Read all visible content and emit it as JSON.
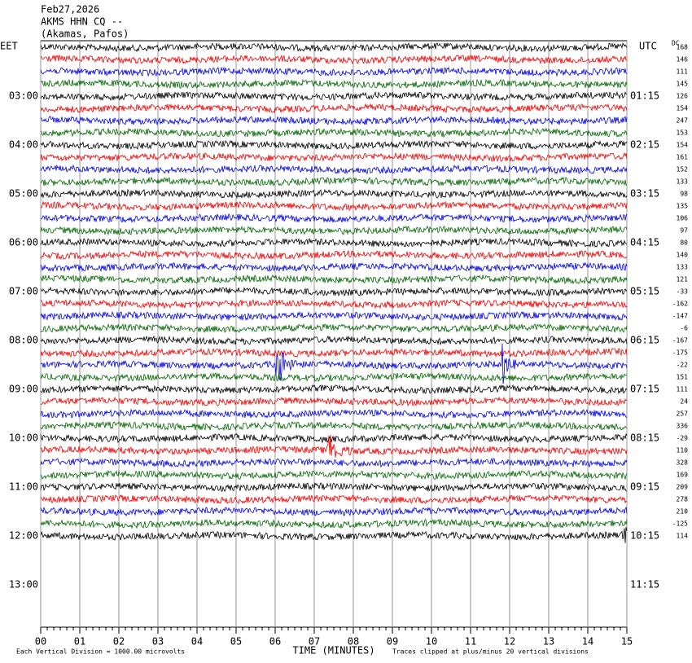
{
  "header": {
    "date": "Feb27,2026",
    "station": "AKMS HHN CQ --",
    "location": "(Akamas, Pafos)"
  },
  "left_axis": {
    "label": "EET",
    "hours": [
      "03:00",
      "04:00",
      "05:00",
      "06:00",
      "07:00",
      "08:00",
      "09:00",
      "10:00",
      "11:00",
      "12:00",
      "13:00"
    ]
  },
  "right_axis": {
    "label": "UTC",
    "hours": [
      "01:15",
      "02:15",
      "03:15",
      "04:15",
      "05:15",
      "06:15",
      "07:15",
      "08:15",
      "09:15",
      "10:15",
      "11:15"
    ]
  },
  "dc": {
    "label": "DC",
    "values": [
      "168",
      "146",
      "111",
      "145",
      "126",
      "154",
      "247",
      "153",
      "154",
      "161",
      "152",
      "133",
      "98",
      "135",
      "106",
      "97",
      "80",
      "140",
      "133",
      "121",
      "-33",
      "-162",
      "-147",
      "-6",
      "-167",
      "-175",
      "-22",
      "151",
      "111",
      "24",
      "257",
      "336",
      "-29",
      "110",
      "328",
      "169",
      "209",
      "278",
      "210",
      "-125",
      "114"
    ]
  },
  "x_axis": {
    "ticks": [
      "00",
      "01",
      "02",
      "03",
      "04",
      "05",
      "06",
      "07",
      "08",
      "09",
      "10",
      "11",
      "12",
      "13",
      "14",
      "15"
    ],
    "title": "TIME (MINUTES)"
  },
  "footer": {
    "left": "Each Vertical Division = 1000.00 microvolts",
    "right": "Traces clipped at plus/minus 20 vertical divisions"
  }
}
